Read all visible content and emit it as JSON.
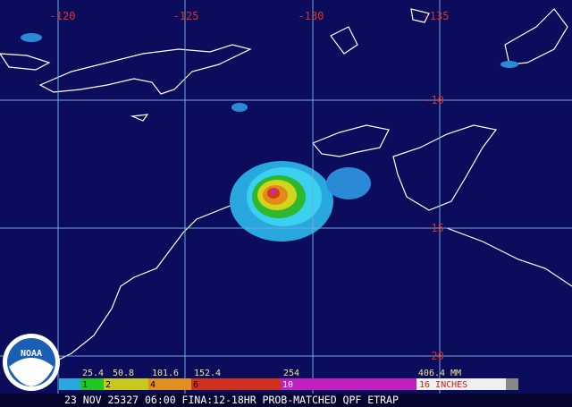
{
  "map": {
    "longitude_labels": [
      "-120",
      "-125",
      "-130",
      "-135"
    ],
    "latitude_labels": [
      "-10",
      "-15",
      "-20"
    ],
    "logo": "NOAA",
    "legend": {
      "mm_labels": [
        "25.4",
        "50.8",
        "101.6",
        "152.4",
        "254",
        "406.4 MM"
      ],
      "inch_labels": [
        "1",
        "2",
        "4",
        "6",
        "10",
        "16 INCHES"
      ]
    },
    "caption": "23 NOV 25327 06:00 FINA:12-18HR PROB-MATCHED QPF ETRAP"
  }
}
